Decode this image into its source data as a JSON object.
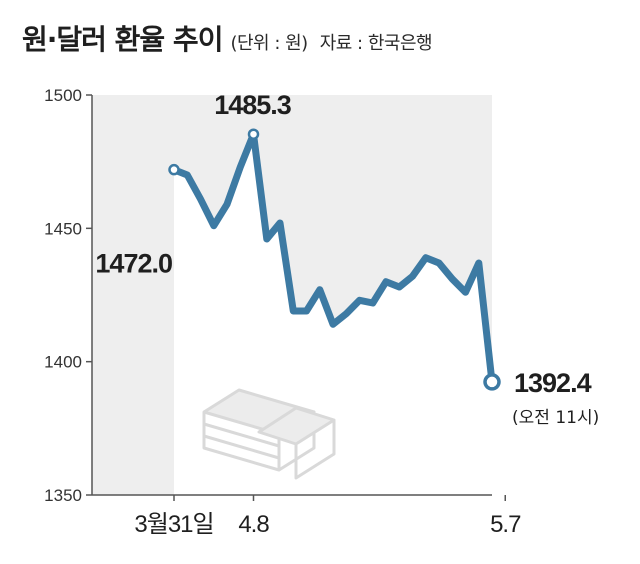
{
  "header": {
    "title": "원·달러 환율 추이",
    "unit": "(단위 : 원)",
    "source": "자료 : 한국은행"
  },
  "chart_data": {
    "type": "area",
    "title": "원·달러 환율 추이",
    "unit": "(단위 : 원)",
    "source": "자료 : 한국은행",
    "xlabel": "",
    "ylabel": "",
    "ylim": [
      1350,
      1500
    ],
    "yticks": [
      1350,
      1400,
      1450,
      1500
    ],
    "xtick_labels": [
      {
        "index": 0,
        "label": "3월31일"
      },
      {
        "index": 6,
        "label": "4.8"
      },
      {
        "index": 25,
        "label": "5.7"
      }
    ],
    "grid": false,
    "series": [
      {
        "color": "#3d7aa3",
        "values": [
          1472.0,
          1470,
          1461,
          1451,
          1459,
          1473,
          1485.3,
          1446,
          1452,
          1419,
          1419,
          1427,
          1414,
          1418,
          1423,
          1422,
          1430,
          1428,
          1432,
          1439,
          1437,
          1431,
          1426,
          1437,
          1392.4
        ]
      }
    ],
    "annotations": [
      {
        "index": 0,
        "text": "1472.0",
        "value": 1472.0
      },
      {
        "index": 6,
        "text": "1485.3",
        "value": 1485.3
      },
      {
        "index": 24,
        "text": "1392.4",
        "value": 1392.4,
        "note": "(오전 11시)"
      }
    ]
  },
  "colors": {
    "line": "#3d7aa3",
    "area": "#ffffff",
    "plot_background": "#eeeeee",
    "axis": "#555555",
    "icon": "#dddddd"
  },
  "icons": [
    "money-stack-icon"
  ]
}
